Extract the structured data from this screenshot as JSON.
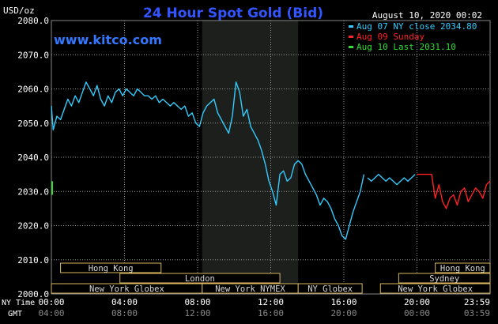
{
  "header": {
    "unit": "USD/oz",
    "title": "24 Hour Spot Gold (Bid)",
    "date": "August 10, 2020 00:02",
    "site": "www.kitco.com"
  },
  "legend": [
    {
      "label": "Aug 07 NY close 2034.80",
      "color": "#33ccff"
    },
    {
      "label": "Aug 09 Sunday",
      "color": "#ff2222"
    },
    {
      "label": "Aug 10 Last 2031.10",
      "color": "#33dd33"
    }
  ],
  "axis": {
    "y_ticks": [
      "2000.0",
      "2010.0",
      "2020.0",
      "2030.0",
      "2040.0",
      "2050.0",
      "2060.0",
      "2070.0",
      "2080.0"
    ],
    "ny_label": "NY Time",
    "gmt_label": "GMT",
    "ny_ticks": [
      "00:00",
      "04:00",
      "08:00",
      "12:00",
      "16:00",
      "20:00",
      "23:59"
    ],
    "gmt_ticks": [
      "04:00",
      "08:00",
      "12:00",
      "16:00",
      "20:00",
      "00:00",
      "03:59"
    ]
  },
  "sessions": [
    {
      "label": "Hong Kong",
      "row": 0,
      "start": 0.5,
      "end": 6.0
    },
    {
      "label": "Hong Kong",
      "row": 0,
      "start": 21.0,
      "end": 24.0
    },
    {
      "label": "London",
      "row": 1,
      "start": 3.75,
      "end": 12.5
    },
    {
      "label": "Sydney",
      "row": 1,
      "start": 19.0,
      "end": 24.0
    },
    {
      "label": "New York Globex",
      "row": 2,
      "start": 0.0,
      "end": 8.25
    },
    {
      "label": "New York NYMEX",
      "row": 2,
      "start": 8.25,
      "end": 13.5
    },
    {
      "label": "NY Globex",
      "row": 2,
      "start": 13.5,
      "end": 17.0
    },
    {
      "label": "New York Globex",
      "row": 2,
      "start": 18.0,
      "end": 24.0
    }
  ],
  "chart_data": {
    "type": "line",
    "title": "24 Hour Spot Gold (Bid)",
    "ylabel": "USD/oz",
    "xlabel": "NY Time",
    "xlim": [
      0,
      24
    ],
    "ylim": [
      2000,
      2080
    ],
    "grid": true,
    "highlight_band": [
      8.25,
      13.5
    ],
    "series": [
      {
        "name": "Aug 07 NY close 2034.80",
        "color": "#33ccff",
        "x": [
          0.0,
          0.1,
          0.2,
          0.3,
          0.5,
          0.7,
          0.9,
          1.1,
          1.3,
          1.5,
          1.7,
          1.9,
          2.1,
          2.3,
          2.5,
          2.7,
          2.9,
          3.1,
          3.3,
          3.5,
          3.7,
          3.9,
          4.1,
          4.3,
          4.5,
          4.7,
          4.9,
          5.1,
          5.3,
          5.5,
          5.7,
          5.9,
          6.1,
          6.3,
          6.5,
          6.7,
          6.9,
          7.1,
          7.3,
          7.5,
          7.7,
          7.9,
          8.1,
          8.3,
          8.5,
          8.7,
          8.9,
          9.1,
          9.3,
          9.5,
          9.7,
          9.9,
          10.1,
          10.3,
          10.5,
          10.7,
          10.9,
          11.1,
          11.3,
          11.5,
          11.7,
          11.9,
          12.1,
          12.3,
          12.5,
          12.7,
          12.9,
          13.1,
          13.3,
          13.5,
          13.7,
          13.9,
          14.1,
          14.3,
          14.5,
          14.7,
          14.9,
          15.1,
          15.3,
          15.5,
          15.7,
          15.9,
          16.1,
          16.3,
          16.5,
          16.7,
          16.9,
          17.1
        ],
        "values": [
          2055,
          2048,
          2050,
          2052,
          2051,
          2054,
          2057,
          2055,
          2058,
          2056,
          2059,
          2062,
          2060,
          2058,
          2061,
          2057,
          2055,
          2058,
          2056,
          2059,
          2060,
          2058,
          2060,
          2059,
          2058,
          2060,
          2059,
          2058,
          2058,
          2057,
          2058,
          2056,
          2057,
          2056,
          2055,
          2056,
          2055,
          2054,
          2055,
          2052,
          2053,
          2050,
          2049,
          2053,
          2055,
          2056,
          2057,
          2053,
          2051,
          2049,
          2047,
          2052,
          2062,
          2059,
          2052,
          2054,
          2049,
          2047,
          2045,
          2042,
          2038,
          2033,
          2030,
          2026,
          2035,
          2036,
          2033,
          2034,
          2038,
          2039,
          2038,
          2035,
          2033,
          2031,
          2029,
          2026,
          2028,
          2027,
          2025,
          2022,
          2020,
          2017,
          2016,
          2020,
          2024,
          2027,
          2030,
          2035
        ],
        "x2": [
          17.3,
          17.5,
          17.7,
          17.9,
          18.1,
          18.3,
          18.5,
          18.7,
          18.9,
          19.1,
          19.3,
          19.5,
          19.7,
          19.9
        ],
        "values2": [
          2034,
          2033,
          2034,
          2035,
          2034,
          2033,
          2034,
          2033,
          2032,
          2033,
          2034,
          2033,
          2034,
          2035
        ]
      },
      {
        "name": "Aug 09 Sunday",
        "color": "#ff2222",
        "x": [
          20.0,
          20.2,
          20.4,
          20.6,
          20.8,
          21.0,
          21.2,
          21.4,
          21.6,
          21.8,
          22.0,
          22.2,
          22.4,
          22.6,
          22.8,
          23.0,
          23.2,
          23.4,
          23.6,
          23.8,
          24.0
        ],
        "values": [
          2035,
          2035,
          2035,
          2035,
          2035,
          2028,
          2032,
          2027,
          2025,
          2028,
          2029,
          2026,
          2030,
          2031,
          2027,
          2029,
          2031,
          2030,
          2028,
          2032,
          2033
        ]
      },
      {
        "name": "Aug 10 Last 2031.10",
        "color": "#33dd33",
        "x": [
          23.98,
          24.0
        ],
        "values": [
          2031,
          2031.1
        ]
      }
    ]
  }
}
